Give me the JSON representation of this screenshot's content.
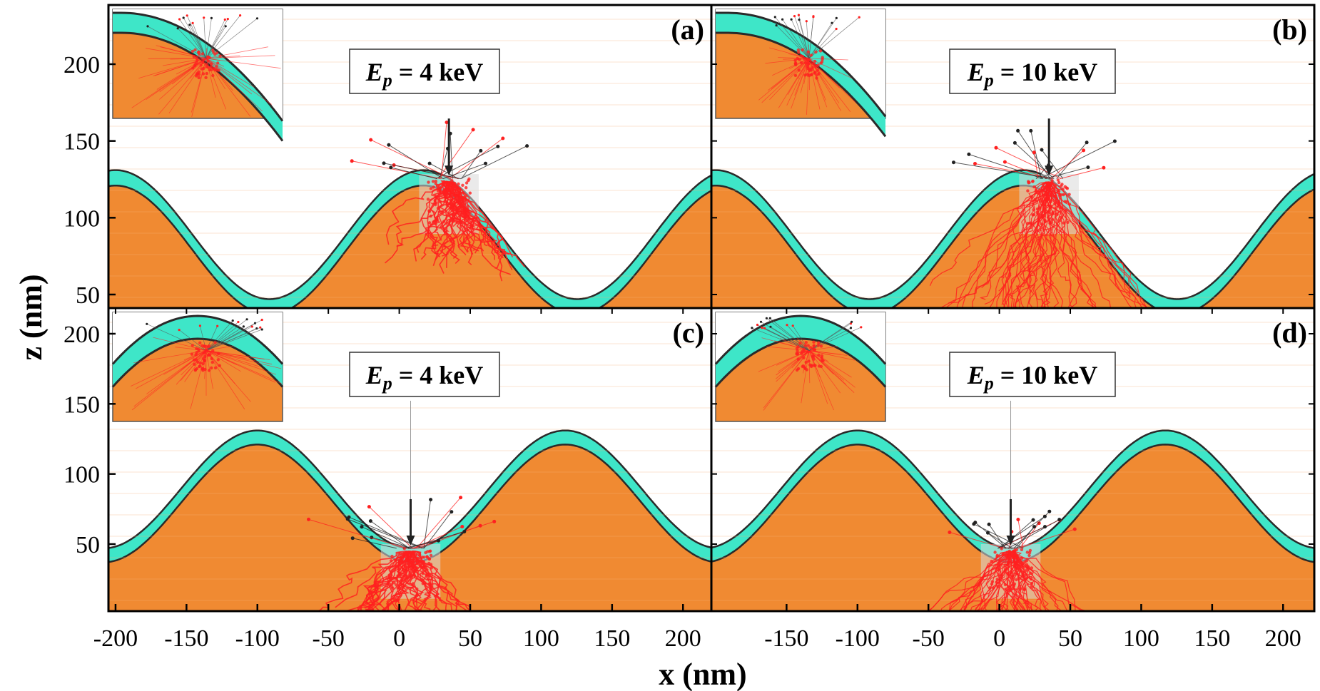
{
  "chart_data": {
    "type": "line",
    "description_units": "nm",
    "xlabel": "x (nm)",
    "ylabel": "z (nm)",
    "xlim": [
      -205,
      220
    ],
    "x_ticks": [
      -200,
      -150,
      -100,
      -50,
      0,
      50,
      100,
      150,
      200
    ],
    "x_ticks_right": [
      -150,
      -100,
      -50,
      0,
      50,
      100,
      150,
      200
    ],
    "y_ticks_top": [
      50,
      100,
      150,
      200
    ],
    "y_ticks_bottom": [
      50,
      100,
      150,
      200
    ],
    "energy_prefix": "E",
    "energy_subscript": "p",
    "colors": {
      "substrate": "#f08a32",
      "film": "#3ee6c8",
      "film_edge": "#2a2a2a",
      "trajectory": "#ff2020",
      "escape": "#222222",
      "beam_box": "#d8d8d8"
    },
    "panels": [
      {
        "id": "a",
        "label": "(a)",
        "energy_value": "= 4 keV",
        "phase": "crest",
        "beam_x": 35
      },
      {
        "id": "b",
        "label": "(b)",
        "energy_value": "= 10 keV",
        "phase": "crest",
        "beam_x": 35
      },
      {
        "id": "c",
        "label": "(c)",
        "energy_value": "= 4 keV",
        "phase": "trough",
        "beam_x": 8
      },
      {
        "id": "d",
        "label": "(d)",
        "energy_value": "= 10 keV",
        "phase": "trough",
        "beam_x": 8
      }
    ],
    "surface": {
      "mean_z": 89,
      "amplitude": 42,
      "film_thickness": 10,
      "crest_positions_top": [
        -200,
        17,
        220
      ],
      "crest_positions_bottom": [
        -100,
        117
      ]
    }
  }
}
